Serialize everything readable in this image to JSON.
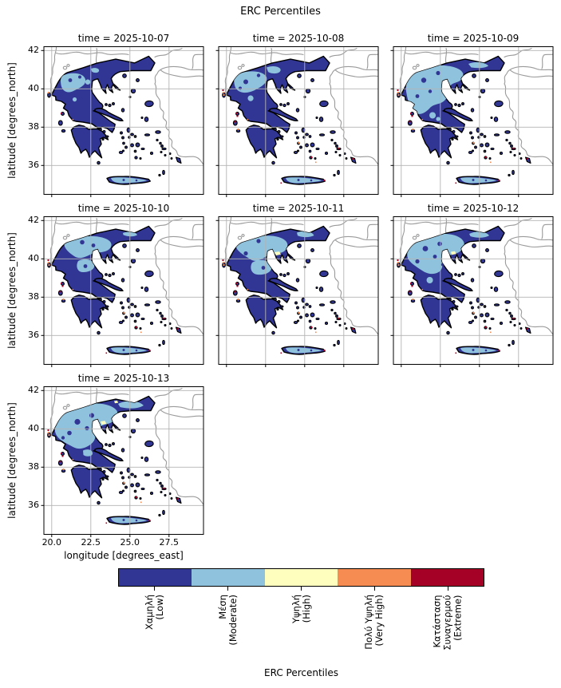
{
  "figure": {
    "title": "ERC Percentiles"
  },
  "axes": {
    "xlabel": "longitude [degrees_east]",
    "ylabel": "latitude [degrees_north]",
    "x_ticks": [
      "20.0",
      "22.5",
      "25.0",
      "27.5"
    ],
    "y_ticks": [
      "42",
      "40",
      "38",
      "36"
    ]
  },
  "subplots": [
    {
      "title": "time = 2025-10-07"
    },
    {
      "title": "time = 2025-10-08"
    },
    {
      "title": "time = 2025-10-09"
    },
    {
      "title": "time = 2025-10-10"
    },
    {
      "title": "time = 2025-10-11"
    },
    {
      "title": "time = 2025-10-12"
    },
    {
      "title": "time = 2025-10-13"
    }
  ],
  "colorbar": {
    "title": "ERC Percentiles",
    "levels": [
      {
        "lines": [
          "Χαμηλή",
          "(Low)"
        ],
        "label": "Χαμηλή (Low)",
        "color": "#313695"
      },
      {
        "lines": [
          "Μέση",
          "(Moderate)"
        ],
        "label": "Μέση (Moderate)",
        "color": "#8fc2dd"
      },
      {
        "lines": [
          "Υψηλή",
          "(High)"
        ],
        "label": "Υψηλή (High)",
        "color": "#feffbe"
      },
      {
        "lines": [
          "Πολύ Υψηλή",
          "(Very High)"
        ],
        "label": "Πολύ Υψηλή (Very High)",
        "color": "#f68c51"
      },
      {
        "lines": [
          "Κατάσταση",
          "Συναγερμού",
          "(Extreme)"
        ],
        "label": "Κατάσταση Συναγερμού (Extreme)",
        "color": "#a50026"
      }
    ]
  },
  "palette": {
    "low": "#313695",
    "moderate": "#8fc2dd",
    "high": "#feffbe",
    "veryhigh": "#f68c51",
    "extreme": "#a50026",
    "grid": "#b3b3b3",
    "border": "#9a9a9a",
    "frame": "#000000"
  },
  "chart_data": {
    "type": "heatmap",
    "subtype": "categorical-choropleth-facet-grid",
    "title": "ERC Percentiles",
    "region": "Greece",
    "facet_variable": "time",
    "facets": [
      "2025-10-07",
      "2025-10-08",
      "2025-10-09",
      "2025-10-10",
      "2025-10-11",
      "2025-10-12",
      "2025-10-13"
    ],
    "categories": [
      "Χαμηλή (Low)",
      "Μέση (Moderate)",
      "Υψηλή (High)",
      "Πολύ Υψηλή (Very High)",
      "Κατάσταση Συναγερμού (Extreme)"
    ],
    "category_colors": [
      "#313695",
      "#8fc2dd",
      "#feffbe",
      "#f68c51",
      "#a50026"
    ],
    "xlabel": "longitude [degrees_east]",
    "ylabel": "latitude [degrees_north]",
    "xlim": [
      19.5,
      29.7
    ],
    "ylim": [
      34.5,
      42.2
    ],
    "x_ticks": [
      20.0,
      22.5,
      25.0,
      27.5
    ],
    "y_ticks": [
      36,
      38,
      40,
      42
    ],
    "grid": true,
    "legend_position": "bottom horizontal colorbar",
    "facet_summaries": {
      "2025-10-07": "Mostly Low; Moderate patch over northwest Macedonia; Moderate strip on Crete",
      "2025-10-08": "Low dominant; Moderate area grows over northwest/north-central; red/orange specks on Ionian islands",
      "2025-10-09": "Large Moderate area across Epirus, Macedonia and Thessaly; Extreme specks on west coast islands",
      "2025-10-10": "Moderate band across north and Thessaly; Epirus back to Low; scattered Very High/Extreme specks",
      "2025-10-11": "Moderate across north and central; small High (yellow) patch near Chalkidiki",
      "2025-10-12": "Moderate covers most of northern half; Low in south and Peloponnese",
      "2025-10-13": "Largest Moderate extent over northern Greece and Thrace; Peloponnese remains Low"
    }
  }
}
